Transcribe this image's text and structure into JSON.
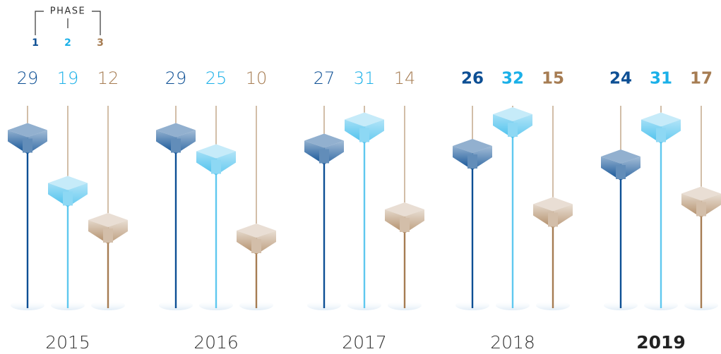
{
  "chart_data": {
    "type": "lollipop",
    "legend_title": "PHASE",
    "categories": [
      "2015",
      "2016",
      "2017",
      "2018",
      "2019"
    ],
    "series": [
      {
        "name": "1",
        "color": "#0d4f94",
        "values": [
          29,
          29,
          27,
          26,
          24
        ]
      },
      {
        "name": "2",
        "color": "#1ab0e8",
        "values": [
          19,
          25,
          31,
          32,
          31
        ]
      },
      {
        "name": "3",
        "color": "#a67c52",
        "values": [
          12,
          10,
          14,
          15,
          17
        ]
      }
    ]
  }
}
